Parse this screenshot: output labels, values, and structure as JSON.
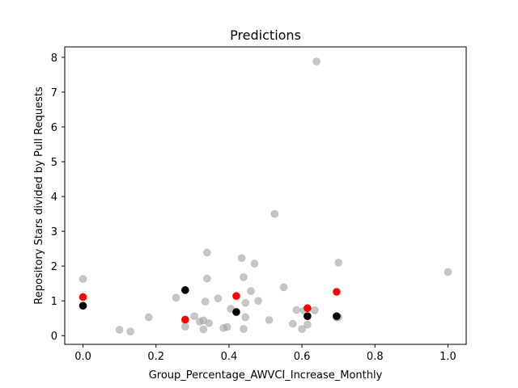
{
  "chart_data": {
    "type": "scatter",
    "title": "Predictions",
    "xlabel": "Group_Percentage_AWVCI_Increase_Monthly",
    "ylabel": "Repository Stars divided by Pull Requests",
    "xlim": [
      -0.05,
      1.05
    ],
    "ylim": [
      -0.25,
      8.3
    ],
    "xticks": [
      0.0,
      0.2,
      0.4,
      0.6,
      0.8,
      1.0
    ],
    "xtick_labels": [
      "0.0",
      "0.2",
      "0.4",
      "0.6",
      "0.8",
      "1.0"
    ],
    "yticks": [
      0,
      1,
      2,
      3,
      4,
      5,
      6,
      7,
      8
    ],
    "ytick_labels": [
      "0",
      "1",
      "2",
      "3",
      "4",
      "5",
      "6",
      "7",
      "8"
    ],
    "grid": false,
    "series": [
      {
        "color": "#a0a0a0",
        "alpha": 0.6,
        "points": [
          [
            0.0,
            1.63
          ],
          [
            0.0,
            0.86
          ],
          [
            0.1,
            0.17
          ],
          [
            0.13,
            0.12
          ],
          [
            0.18,
            0.53
          ],
          [
            0.255,
            1.09
          ],
          [
            0.28,
            0.26
          ],
          [
            0.305,
            0.56
          ],
          [
            0.32,
            0.4
          ],
          [
            0.33,
            0.44
          ],
          [
            0.33,
            0.18
          ],
          [
            0.335,
            0.98
          ],
          [
            0.34,
            1.64
          ],
          [
            0.345,
            0.36
          ],
          [
            0.34,
            2.39
          ],
          [
            0.37,
            1.07
          ],
          [
            0.385,
            0.22
          ],
          [
            0.395,
            0.25
          ],
          [
            0.405,
            0.77
          ],
          [
            0.435,
            2.23
          ],
          [
            0.44,
            0.19
          ],
          [
            0.44,
            1.68
          ],
          [
            0.445,
            0.94
          ],
          [
            0.445,
            0.53
          ],
          [
            0.46,
            1.28
          ],
          [
            0.47,
            2.07
          ],
          [
            0.48,
            1.0
          ],
          [
            0.51,
            0.45
          ],
          [
            0.525,
            3.5
          ],
          [
            0.55,
            1.39
          ],
          [
            0.575,
            0.34
          ],
          [
            0.585,
            0.74
          ],
          [
            0.6,
            0.19
          ],
          [
            0.605,
            0.72
          ],
          [
            0.615,
            0.32
          ],
          [
            0.635,
            0.73
          ],
          [
            0.64,
            7.88
          ],
          [
            0.695,
            0.52
          ],
          [
            0.7,
            2.1
          ],
          [
            0.7,
            0.53
          ],
          [
            1.0,
            1.83
          ]
        ]
      },
      {
        "color": "#ff0000",
        "alpha": 1.0,
        "points": [
          [
            0.0,
            1.11
          ],
          [
            0.28,
            0.46
          ],
          [
            0.42,
            1.14
          ],
          [
            0.615,
            0.79
          ],
          [
            0.695,
            1.26
          ]
        ]
      },
      {
        "color": "#000000",
        "alpha": 1.0,
        "points": [
          [
            0.0,
            0.86
          ],
          [
            0.28,
            1.31
          ],
          [
            0.42,
            0.68
          ],
          [
            0.615,
            0.56
          ],
          [
            0.695,
            0.56
          ]
        ]
      }
    ]
  }
}
